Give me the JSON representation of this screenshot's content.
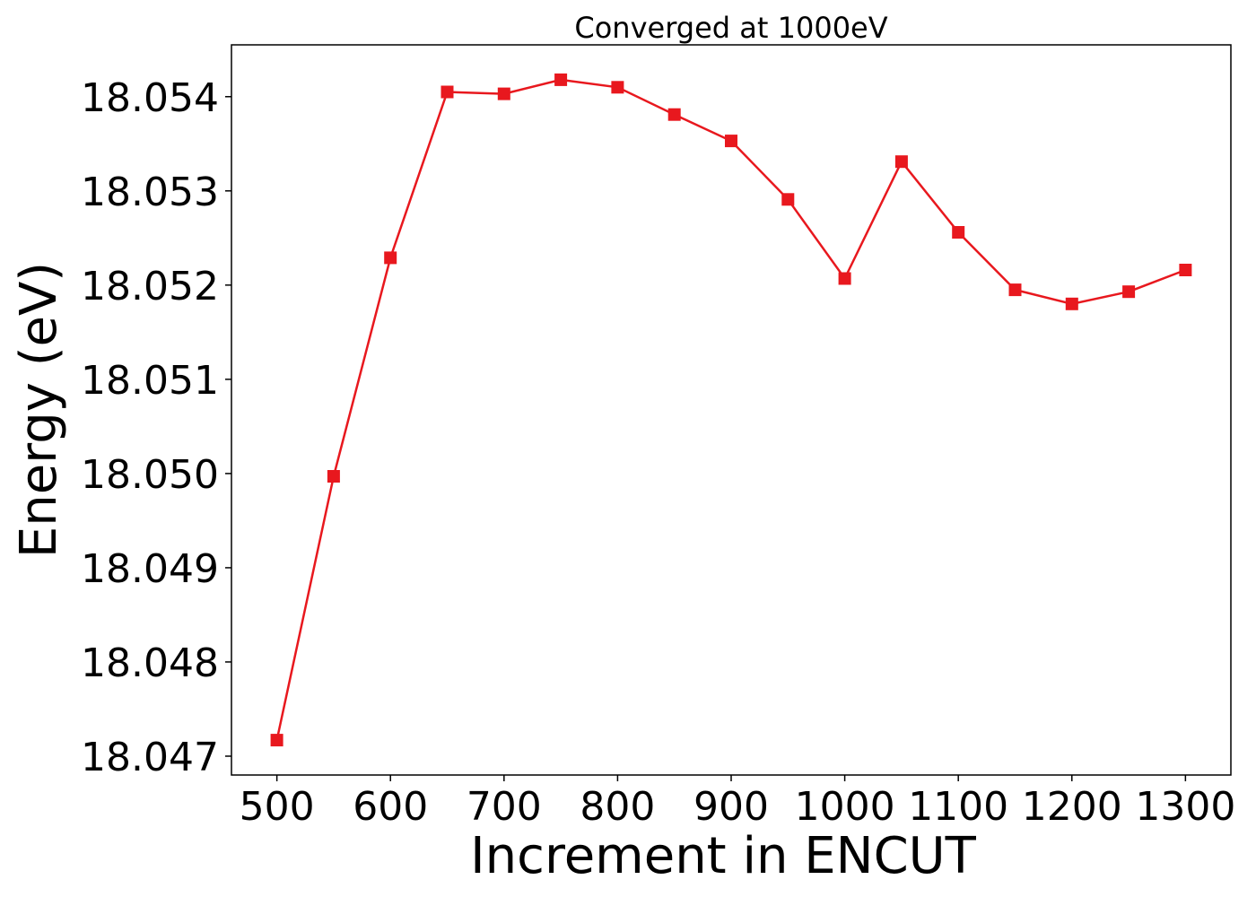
{
  "chart_data": {
    "type": "line",
    "title": "Converged at 1000eV",
    "xlabel": "Increment in ENCUT",
    "ylabel": "Energy (eV)",
    "x": [
      500,
      550,
      600,
      650,
      700,
      750,
      800,
      850,
      900,
      950,
      1000,
      1050,
      1100,
      1150,
      1200,
      1250,
      1300
    ],
    "series": [
      {
        "color": "#e8181e",
        "marker": "square",
        "values": [
          18.04717,
          18.04997,
          18.05229,
          18.05405,
          18.05403,
          18.05418,
          18.0541,
          18.05381,
          18.05353,
          18.05291,
          18.05207,
          18.05331,
          18.05256,
          18.05195,
          18.0518,
          18.05193,
          18.05216
        ]
      }
    ],
    "xlim": [
      460,
      1340
    ],
    "ylim": [
      18.0468,
      18.05455
    ],
    "xticks": [
      500,
      600,
      700,
      800,
      900,
      1000,
      1100,
      1200,
      1300
    ],
    "yticks": [
      18.047,
      18.048,
      18.049,
      18.05,
      18.051,
      18.052,
      18.053,
      18.054
    ],
    "xtick_labels": [
      "500",
      "600",
      "700",
      "800",
      "900",
      "1000",
      "1100",
      "1200",
      "1300"
    ],
    "ytick_labels": [
      "18.047",
      "18.048",
      "18.049",
      "18.050",
      "18.051",
      "18.052",
      "18.053",
      "18.054"
    ],
    "grid": false,
    "legend": "none"
  }
}
